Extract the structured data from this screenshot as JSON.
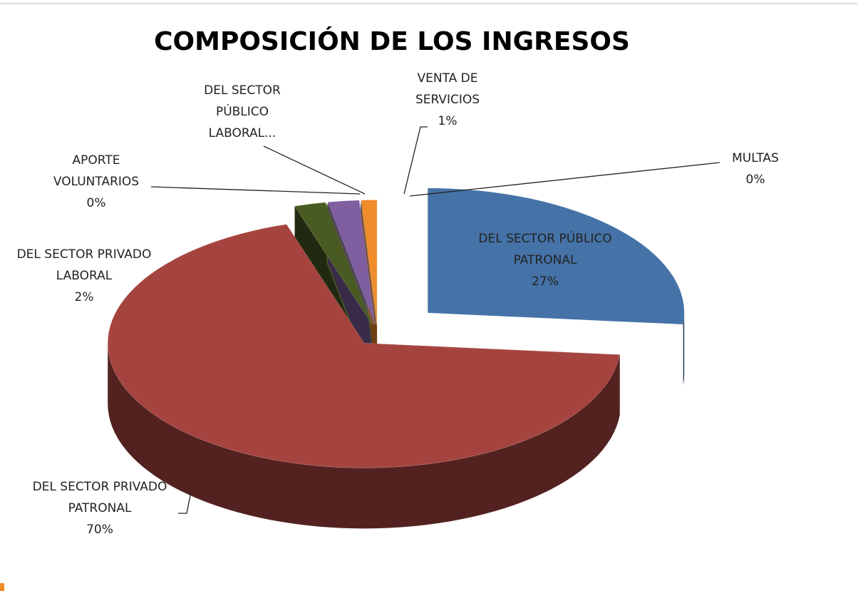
{
  "chart_data": {
    "type": "pie3d",
    "title": "COMPOSICIÓN DE LOS INGRESOS",
    "categories": [
      "DEL SECTOR PÚBLICO PATRONAL",
      "DEL SECTOR PRIVADO PATRONAL",
      "DEL SECTOR PRIVADO LABORAL",
      "APORTE VOLUNTARIOS",
      "DEL SECTOR PÚBLICO LABORAL...",
      "MULTAS",
      "VENTA DE SERVICIOS"
    ],
    "values": [
      27,
      70,
      2,
      0,
      2,
      0,
      1
    ],
    "value_labels": [
      "27%",
      "70%",
      "2%",
      "0%",
      null,
      "0%",
      "1%"
    ],
    "colors": [
      "#4572a7",
      "#a5443f",
      "#4a5a23",
      "#9bbb59",
      "#7f5f9f",
      "#4bacc6",
      "#f08c2a"
    ]
  }
}
